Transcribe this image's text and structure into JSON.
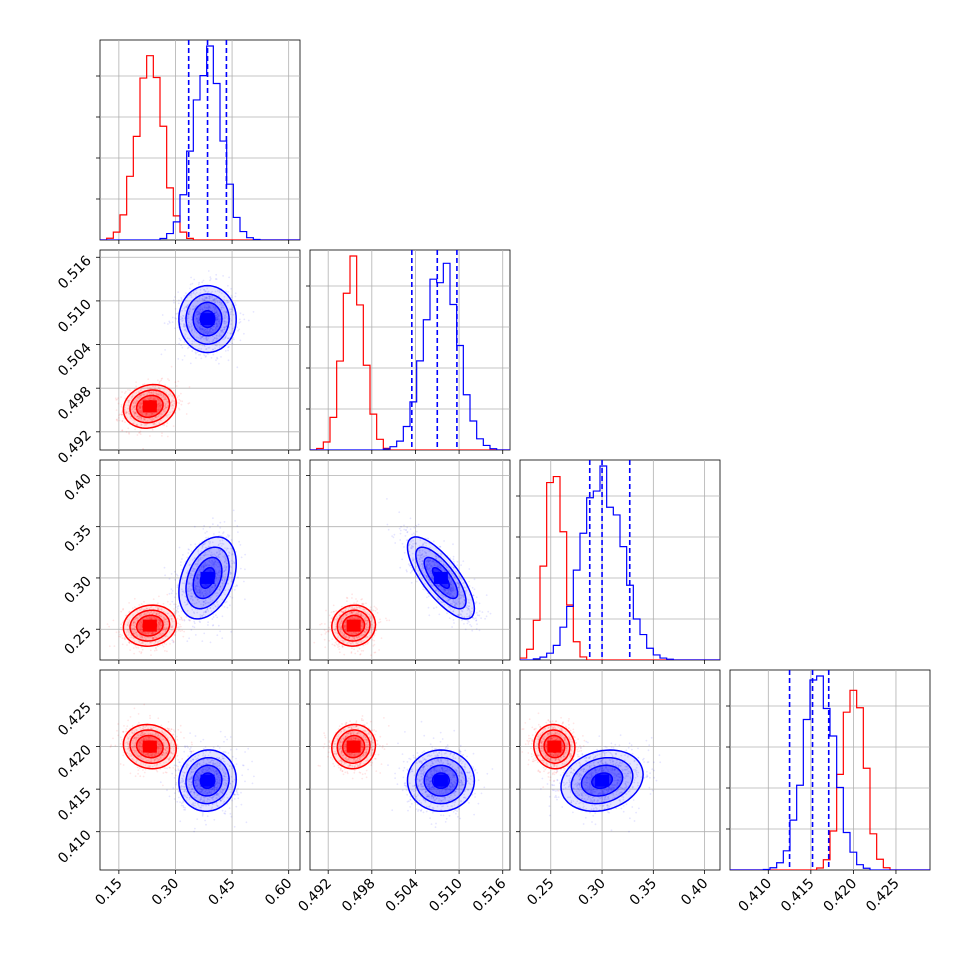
{
  "chart_data": {
    "type": "corner",
    "n_params": 4,
    "colors": {
      "red": "#ff0000",
      "blue": "#0000ff"
    },
    "grid": true,
    "axes": [
      {
        "range": [
          0.1,
          0.63
        ],
        "ticks": [
          "0.15",
          "0.30",
          "0.45",
          "0.60"
        ],
        "tick_values": [
          0.15,
          0.3,
          0.45,
          0.6
        ]
      },
      {
        "range": [
          0.4895,
          0.517
        ],
        "ticks": [
          "0.492",
          "0.498",
          "0.504",
          "0.510",
          "0.516"
        ],
        "tick_values": [
          0.492,
          0.498,
          0.504,
          0.51,
          0.516
        ]
      },
      {
        "range": [
          0.22,
          0.415
        ],
        "ticks": [
          "0.25",
          "0.30",
          "0.35",
          "0.40"
        ],
        "tick_values": [
          0.25,
          0.3,
          0.35,
          0.4
        ]
      },
      {
        "range": [
          0.4055,
          0.429
        ],
        "ticks": [
          "0.410",
          "0.415",
          "0.420",
          "0.425"
        ],
        "tick_values": [
          0.41,
          0.415,
          0.42,
          0.425
        ]
      }
    ],
    "series": [
      {
        "color": "#ff0000",
        "means": [
          0.232,
          0.4955,
          0.2535,
          0.42
        ],
        "sigmas": [
          0.035,
          0.0015,
          0.01,
          0.0013
        ],
        "correlations": {
          "1-0": 0.15,
          "2-0": 0.1,
          "2-1": 0.05,
          "3-0": -0.1,
          "3-1": 0.05,
          "3-2": -0.05
        }
      },
      {
        "color": "#0000ff",
        "means": [
          0.385,
          0.5075,
          0.3,
          0.416
        ],
        "sigmas": [
          0.038,
          0.0023,
          0.02,
          0.0018
        ],
        "correlations": {
          "1-0": 0.0,
          "2-0": 0.35,
          "2-1": -0.75,
          "3-0": 0.05,
          "3-1": 0.0,
          "3-2": 0.2
        }
      }
    ],
    "quantile_lines": [
      [
        0.335,
        0.385,
        0.435
      ],
      [
        0.5035,
        0.507,
        0.5097
      ],
      [
        0.288,
        0.3,
        0.327
      ],
      [
        0.4125,
        0.4152,
        0.4171
      ]
    ]
  }
}
